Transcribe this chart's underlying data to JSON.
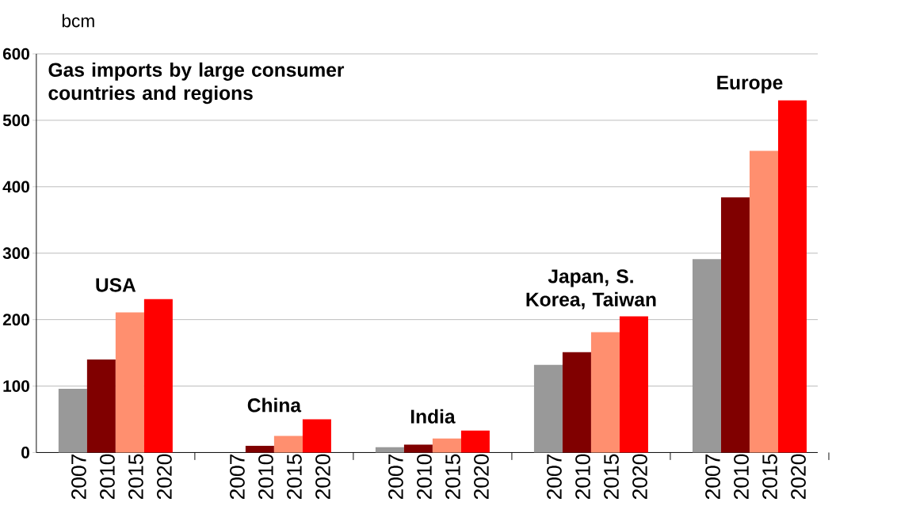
{
  "chart_data": {
    "type": "bar",
    "title": "Gas imports by large consumer countries and regions",
    "ylabel": "bcm",
    "categories": [
      "USA",
      "China",
      "India",
      "Japan, S. Korea, Taiwan",
      "Europe"
    ],
    "series": [
      {
        "name": "2007",
        "color": "#999999",
        "values": [
          96,
          0,
          8,
          132,
          291
        ]
      },
      {
        "name": "2010",
        "color": "#800000",
        "values": [
          140,
          10,
          12,
          151,
          384
        ]
      },
      {
        "name": "2015",
        "color": "#ff8f6f",
        "values": [
          211,
          25,
          21,
          181,
          454
        ]
      },
      {
        "name": "2020",
        "color": "#ff0000",
        "values": [
          231,
          50,
          33,
          205,
          530
        ]
      }
    ],
    "ylim": [
      0,
      600
    ],
    "yticks": [
      0,
      100,
      200,
      300,
      400,
      500,
      600
    ],
    "grid": "y"
  }
}
